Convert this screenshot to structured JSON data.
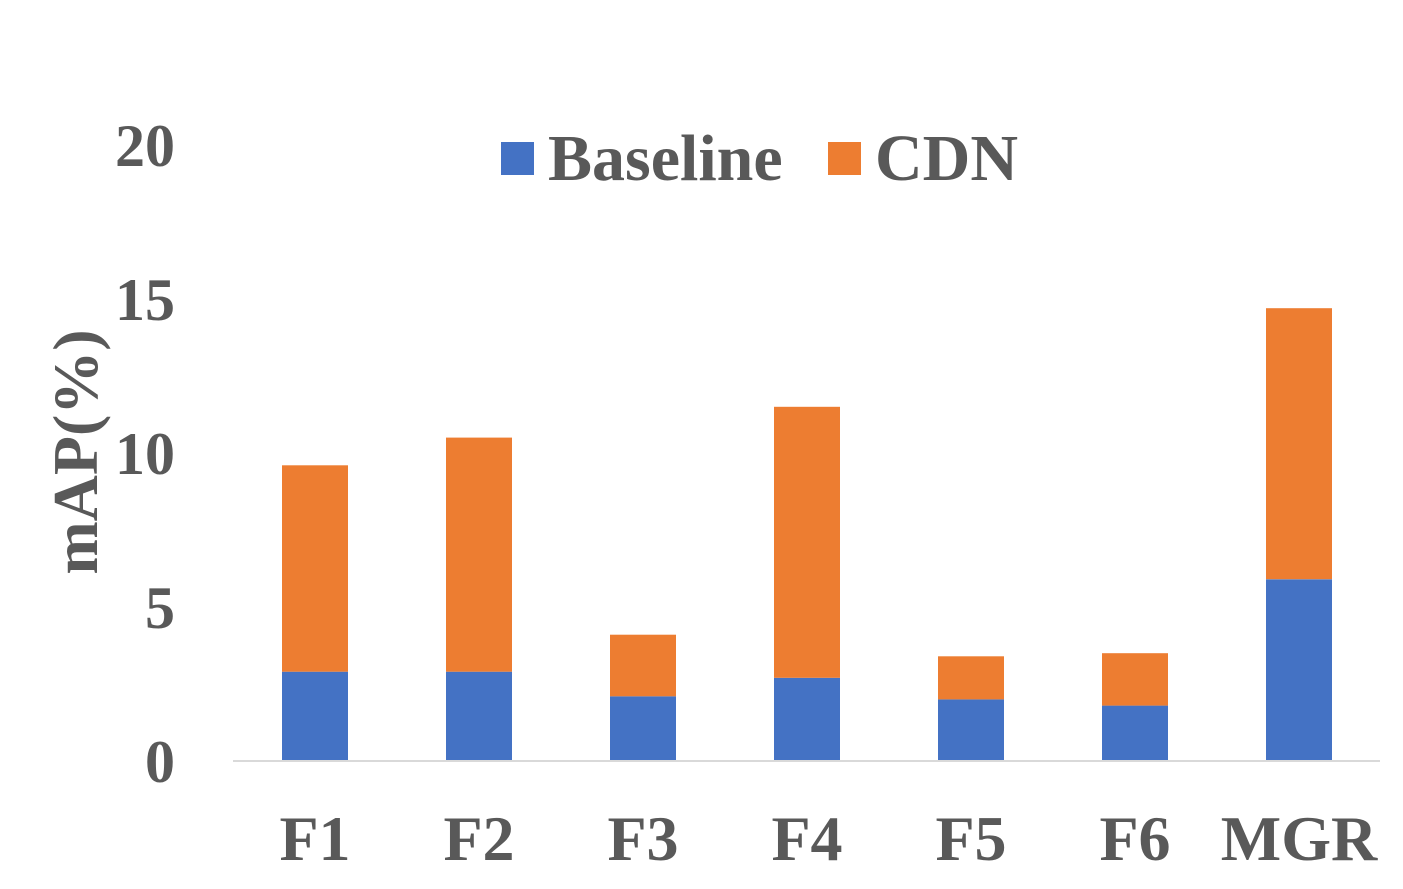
{
  "chart_data": {
    "type": "bar",
    "stacked": true,
    "categories": [
      "F1",
      "F2",
      "F3",
      "F4",
      "F5",
      "F6",
      "MGR"
    ],
    "series": [
      {
        "name": "Baseline",
        "color": "#4472C4",
        "values": [
          2.9,
          2.9,
          2.1,
          2.7,
          2.0,
          1.8,
          5.9
        ]
      },
      {
        "name": "CDN",
        "color": "#ED7D31",
        "values": [
          6.7,
          7.6,
          2.0,
          8.8,
          1.4,
          1.7,
          8.8
        ]
      }
    ],
    "ylabel": "mAP(%)",
    "xlabel": "",
    "ylim": [
      0,
      20
    ],
    "yticks": [
      "0",
      "5",
      "10",
      "15",
      "20"
    ],
    "grid": false,
    "legend_position": "top-center"
  }
}
